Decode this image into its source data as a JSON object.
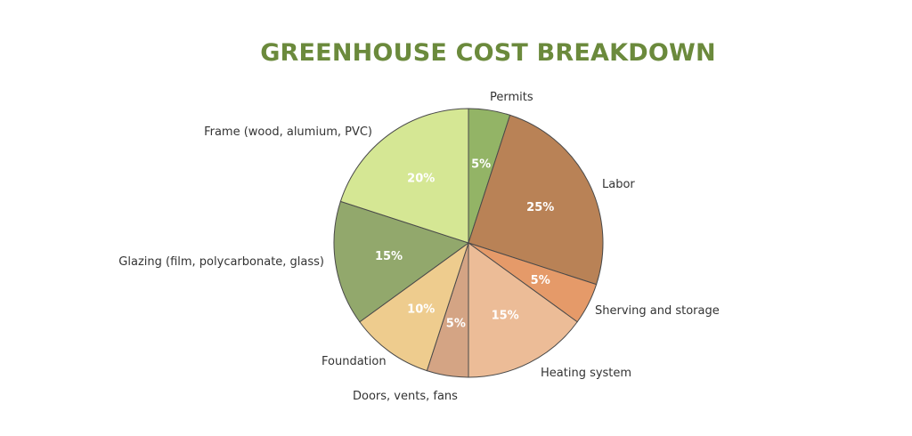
{
  "title": "GREENHOUSE COST BREAKDOWN",
  "colors": {
    "title": "#6b8a3c",
    "slice_stroke": "#4a4a4a"
  },
  "chart_data": {
    "type": "pie",
    "title": "GREENHOUSE COST BREAKDOWN",
    "start": "12 o'clock",
    "direction": "clockwise",
    "slices": [
      {
        "label": "Permits",
        "value": 5,
        "value_label": "5%",
        "color": "#93b466"
      },
      {
        "label": "Labor",
        "value": 25,
        "value_label": "25%",
        "color": "#b98256"
      },
      {
        "label": "Sherving and storage",
        "value": 5,
        "value_label": "5%",
        "color": "#e59a69"
      },
      {
        "label": "Heating system",
        "value": 15,
        "value_label": "15%",
        "color": "#ecbc97"
      },
      {
        "label": "Doors, vents, fans",
        "value": 5,
        "value_label": "5%",
        "color": "#d4a484"
      },
      {
        "label": "Foundation",
        "value": 10,
        "value_label": "10%",
        "color": "#eecc8e"
      },
      {
        "label": "Glazing (film, polycarbonate, glass)",
        "value": 15,
        "value_label": "15%",
        "color": "#92a86c"
      },
      {
        "label": "Frame (wood, alumium, PVC)",
        "value": 20,
        "value_label": "20%",
        "color": "#d5e794"
      }
    ]
  }
}
